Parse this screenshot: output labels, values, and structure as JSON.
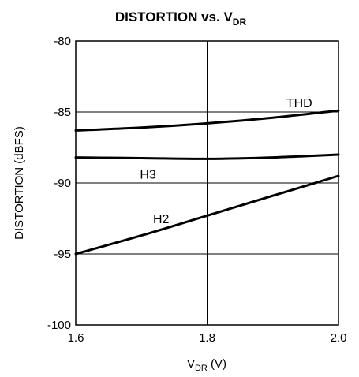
{
  "chart_data": {
    "type": "line",
    "title": {
      "main": "DISTORTION vs. V",
      "sub": "DR"
    },
    "xlabel": {
      "main": "V",
      "sub": "DR",
      "suffix": " (V)"
    },
    "ylabel": "DISTORTION (dBFS)",
    "xlim": [
      1.6,
      2.0
    ],
    "ylim": [
      -100,
      -80
    ],
    "xticks": [
      {
        "value": 1.6,
        "label": "1.6"
      },
      {
        "value": 1.8,
        "label": "1.8"
      },
      {
        "value": 2.0,
        "label": "2.0"
      }
    ],
    "yticks": [
      {
        "value": -80,
        "label": "-80"
      },
      {
        "value": -85,
        "label": "-85"
      },
      {
        "value": -90,
        "label": "-90"
      },
      {
        "value": -95,
        "label": "-95"
      },
      {
        "value": -100,
        "label": "-100"
      }
    ],
    "grid": true,
    "series": [
      {
        "name": "THD",
        "x": [
          1.6,
          1.7,
          1.8,
          1.9,
          2.0
        ],
        "values": [
          -86.3,
          -86.1,
          -85.8,
          -85.4,
          -84.9
        ]
      },
      {
        "name": "H3",
        "x": [
          1.6,
          1.7,
          1.8,
          1.9,
          2.0
        ],
        "values": [
          -88.2,
          -88.25,
          -88.3,
          -88.2,
          -88.0
        ]
      },
      {
        "name": "H2",
        "x": [
          1.6,
          1.7,
          1.8,
          1.9,
          2.0
        ],
        "values": [
          -95.0,
          -93.7,
          -92.3,
          -90.9,
          -89.5
        ]
      }
    ]
  }
}
